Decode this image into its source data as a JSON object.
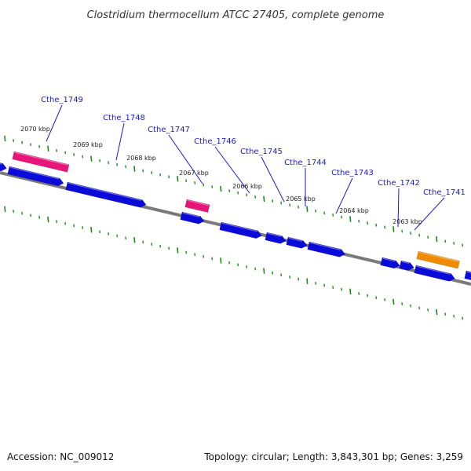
{
  "title": "Clostridium thermocellum ATCC 27405, complete genome",
  "footer": {
    "accession": "Accession: NC_009012",
    "topology": "Topology: circular; Length: 3,843,301 bp; Genes: 3,259"
  },
  "colors": {
    "cds_blue": "#0b0bd9",
    "rna_pink": "#e8157a",
    "orange": "#f08a00",
    "backbone": "#7a7a7a",
    "tick_green": "#1b8a1b",
    "label_blue": "#1a1ad6"
  },
  "scale": {
    "unit": "kbp",
    "ticks": [
      {
        "value": 2070,
        "label": "2070 kbp"
      },
      {
        "value": 2069,
        "label": "2069 kbp"
      },
      {
        "value": 2068,
        "label": "2068 kbp"
      },
      {
        "value": 2067,
        "label": "2067 kbp"
      },
      {
        "value": 2066,
        "label": "2066 kbp"
      },
      {
        "value": 2065,
        "label": "2065 kbp"
      },
      {
        "value": 2064,
        "label": "2064 kbp"
      },
      {
        "value": 2063,
        "label": "2063 kbp"
      }
    ]
  },
  "gene_labels": [
    "Cthe_1749",
    "Cthe_1748",
    "Cthe_1747",
    "Cthe_1746",
    "Cthe_1745",
    "Cthe_1744",
    "Cthe_1743",
    "Cthe_1742",
    "Cthe_1741"
  ]
}
